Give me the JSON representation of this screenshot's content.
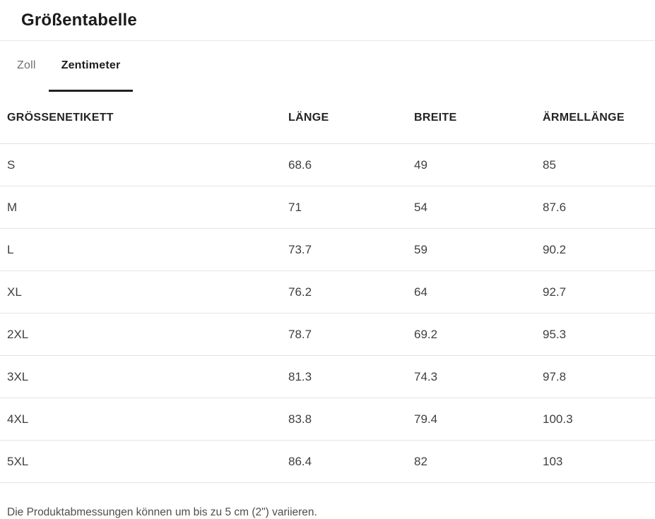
{
  "header": {
    "title": "Größentabelle"
  },
  "tabs": {
    "zoll": {
      "label": "Zoll",
      "active": false
    },
    "zentimeter": {
      "label": "Zentimeter",
      "active": true
    }
  },
  "table": {
    "columns": [
      "GRÖSSENETIKETT",
      "LÄNGE",
      "BREITE",
      "ÄRMELLÄNGE"
    ],
    "rows": [
      {
        "size": "S",
        "length": "68.6",
        "width": "49",
        "sleeve": "85"
      },
      {
        "size": "M",
        "length": "71",
        "width": "54",
        "sleeve": "87.6"
      },
      {
        "size": "L",
        "length": "73.7",
        "width": "59",
        "sleeve": "90.2"
      },
      {
        "size": "XL",
        "length": "76.2",
        "width": "64",
        "sleeve": "92.7"
      },
      {
        "size": "2XL",
        "length": "78.7",
        "width": "69.2",
        "sleeve": "95.3"
      },
      {
        "size": "3XL",
        "length": "81.3",
        "width": "74.3",
        "sleeve": "97.8"
      },
      {
        "size": "4XL",
        "length": "83.8",
        "width": "79.4",
        "sleeve": "100.3"
      },
      {
        "size": "5XL",
        "length": "86.4",
        "width": "82",
        "sleeve": "103"
      }
    ]
  },
  "footer": {
    "note": "Die Produktabmessungen können um bis zu 5 cm (2\") variieren."
  }
}
